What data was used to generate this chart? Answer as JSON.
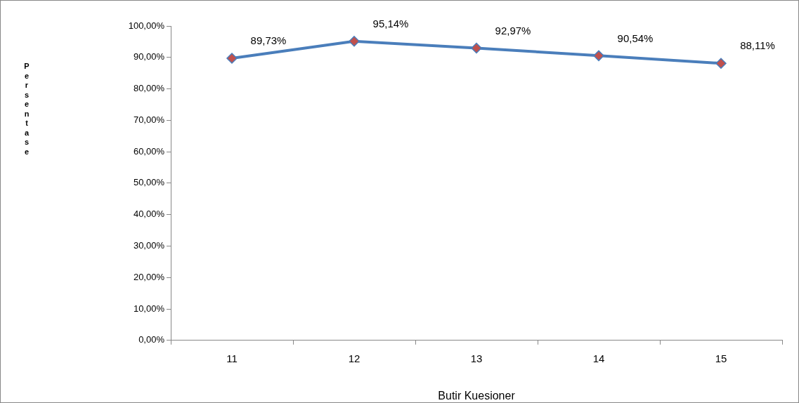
{
  "chart_data": {
    "type": "line",
    "xlabel": "Butir Kuesioner",
    "ylabel": "Persentase",
    "categories": [
      "11",
      "12",
      "13",
      "14",
      "15"
    ],
    "series": [
      {
        "color": "#4a7ebb",
        "values": [
          89.73,
          95.14,
          92.97,
          90.54,
          88.11
        ],
        "value_labels": [
          "89,73%",
          "95,14%",
          "92,97%",
          "90,54%",
          "88,11%"
        ]
      }
    ],
    "ylim": [
      0,
      100
    ],
    "yticks": [
      {
        "value": 0,
        "label": "0,00%"
      },
      {
        "value": 10,
        "label": "10,00%"
      },
      {
        "value": 20,
        "label": "20,00%"
      },
      {
        "value": 30,
        "label": "30,00%"
      },
      {
        "value": 40,
        "label": "40,00%"
      },
      {
        "value": 50,
        "label": "50,00%"
      },
      {
        "value": 60,
        "label": "60,00%"
      },
      {
        "value": 70,
        "label": "70,00%"
      },
      {
        "value": 80,
        "label": "80,00%"
      },
      {
        "value": 90,
        "label": "90,00%"
      },
      {
        "value": 100,
        "label": "100,00%"
      }
    ],
    "grid": false,
    "legend": false,
    "marker": "diamond",
    "line_style": "solid"
  }
}
